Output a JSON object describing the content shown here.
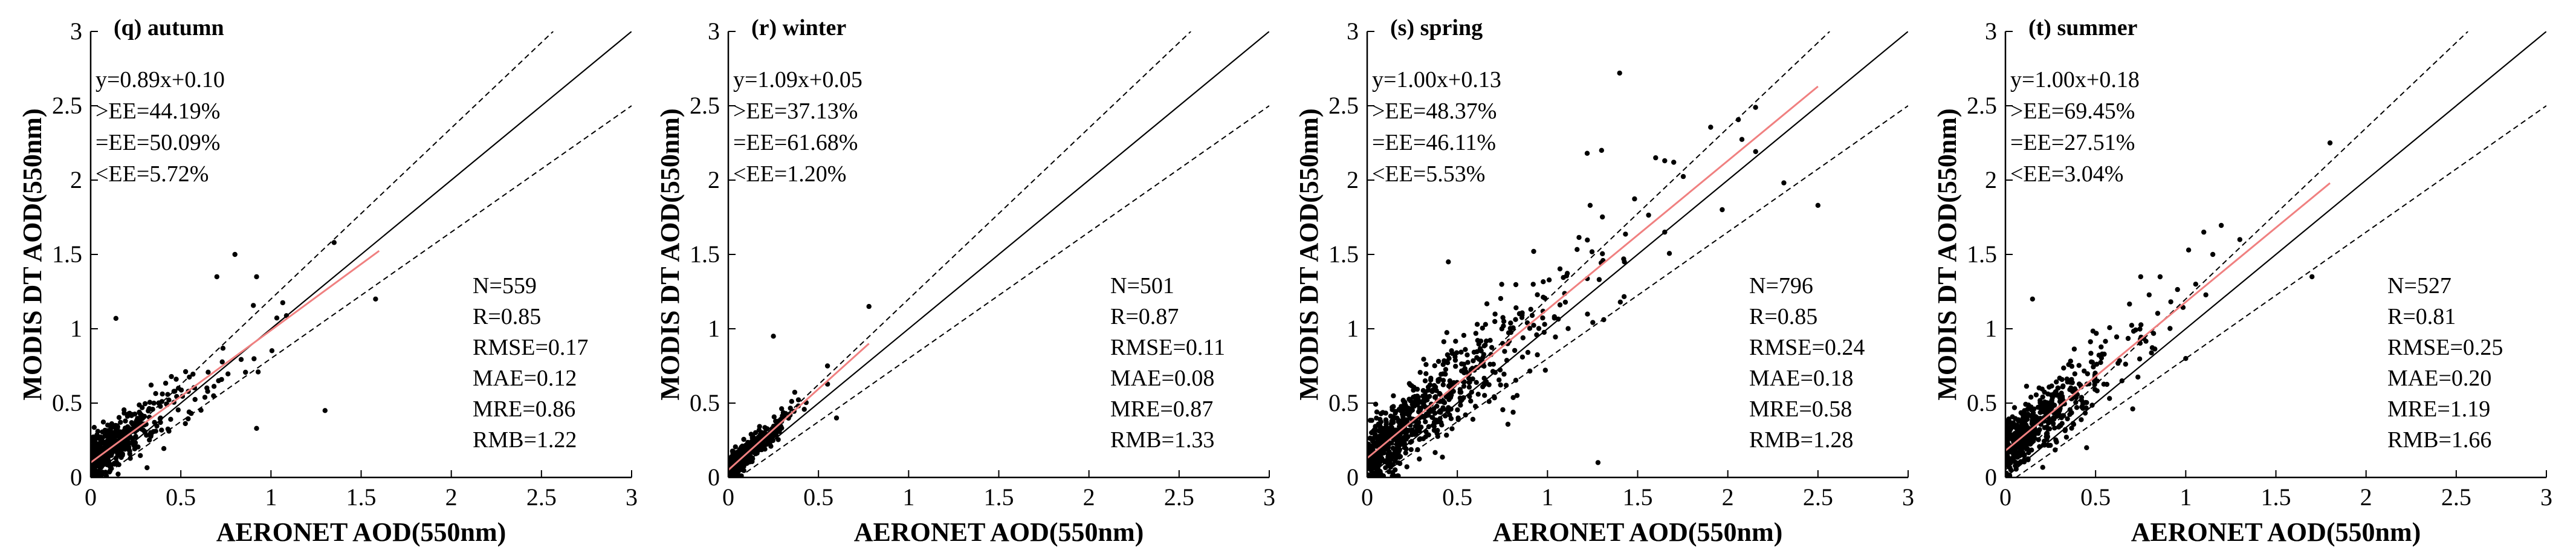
{
  "figure": {
    "xlabel": "AERONET AOD(550nm)",
    "ylabel": "MODIS DT AOD(550nm)",
    "colors": {
      "axis": "#000000",
      "fit": "#f08080",
      "point": "#000000",
      "background": "#ffffff"
    }
  },
  "chart_data": [
    {
      "type": "scatter",
      "title": "(q)  autumn",
      "xlabel": "AERONET AOD(550nm)",
      "ylabel": "MODIS DT AOD(550nm)",
      "xlim": [
        0,
        3
      ],
      "ylim": [
        0,
        3
      ],
      "xticks": [
        "0",
        "0.5",
        "1",
        "1.5",
        "2",
        "2.5",
        "3"
      ],
      "yticks": [
        "0",
        "0.5",
        "1",
        "1.5",
        "2",
        "2.5",
        "3"
      ],
      "fit": {
        "slope": 0.89,
        "intercept": 0.1,
        "x_end": 1.6
      },
      "fit_label": "y=0.89x+0.10",
      "ee_lines": [
        ">EE=44.19%",
        "=EE=50.09%",
        "<EE=5.72%"
      ],
      "stats": [
        "N=559",
        "R=0.85",
        "RMSE=0.17",
        "MAE=0.12",
        "MRE=0.86",
        "RMB=1.22"
      ],
      "n": 559,
      "r": 0.85,
      "x_scale": 0.17,
      "x_max": 1.6,
      "noise": 0.13,
      "outliers": [
        [
          0.14,
          1.07
        ],
        [
          0.8,
          1.5
        ],
        [
          1.35,
          1.58
        ],
        [
          0.92,
          0.33
        ],
        [
          1.3,
          0.45
        ],
        [
          1.58,
          1.2
        ],
        [
          0.92,
          1.35
        ],
        [
          0.7,
          1.35
        ]
      ]
    },
    {
      "type": "scatter",
      "title": "(r)  winter",
      "xlabel": "AERONET AOD(550nm)",
      "ylabel": "MODIS DT AOD(550nm)",
      "xlim": [
        0,
        3
      ],
      "ylim": [
        0,
        3
      ],
      "xticks": [
        "0",
        "0.5",
        "1",
        "1.5",
        "2",
        "2.5",
        "3"
      ],
      "yticks": [
        "0",
        "0.5",
        "1",
        "1.5",
        "2",
        "2.5",
        "3"
      ],
      "fit": {
        "slope": 1.09,
        "intercept": 0.05,
        "x_end": 0.78
      },
      "fit_label": "y=1.09x+0.05",
      "ee_lines": [
        ">EE=37.13%",
        "=EE=61.68%",
        "<EE=1.20%"
      ],
      "stats": [
        "N=501",
        "R=0.87",
        "RMSE=0.11",
        "MAE=0.08",
        "MRE=0.87",
        "RMB=1.33"
      ],
      "n": 501,
      "r": 0.87,
      "x_scale": 0.09,
      "x_max": 0.78,
      "noise": 0.08,
      "outliers": [
        [
          0.25,
          0.95
        ],
        [
          0.78,
          1.15
        ],
        [
          0.55,
          0.75
        ],
        [
          0.6,
          0.4
        ]
      ]
    },
    {
      "type": "scatter",
      "title": "(s)  spring",
      "xlabel": "AERONET AOD(550nm)",
      "ylabel": "MODIS DT AOD(550nm)",
      "xlim": [
        0,
        3
      ],
      "ylim": [
        0,
        3
      ],
      "xticks": [
        "0",
        "0.5",
        "1",
        "1.5",
        "2",
        "2.5",
        "3"
      ],
      "yticks": [
        "0",
        "0.5",
        "1",
        "1.5",
        "2",
        "2.5",
        "3"
      ],
      "fit": {
        "slope": 1.0,
        "intercept": 0.13,
        "x_end": 2.5
      },
      "fit_label": "y=1.00x+0.13",
      "ee_lines": [
        ">EE=48.37%",
        "=EE=46.11%",
        "<EE=5.53%"
      ],
      "stats": [
        "N=796",
        "R=0.85",
        "RMSE=0.24",
        "MAE=0.18",
        "MRE=0.58",
        "RMB=1.28"
      ],
      "n": 796,
      "r": 0.85,
      "x_scale": 0.35,
      "x_max": 2.5,
      "noise": 0.2,
      "outliers": [
        [
          1.4,
          2.72
        ],
        [
          1.3,
          2.2
        ],
        [
          1.22,
          2.18
        ],
        [
          1.6,
          2.15
        ],
        [
          1.65,
          2.13
        ],
        [
          1.7,
          2.12
        ],
        [
          2.5,
          1.83
        ],
        [
          1.28,
          0.1
        ],
        [
          0.45,
          1.45
        ],
        [
          1.65,
          1.65
        ]
      ]
    },
    {
      "type": "scatter",
      "title": "(t)  summer",
      "xlabel": "AERONET AOD(550nm)",
      "ylabel": "MODIS DT AOD(550nm)",
      "xlim": [
        0,
        3
      ],
      "ylim": [
        0,
        3
      ],
      "xticks": [
        "0",
        "0.5",
        "1",
        "1.5",
        "2",
        "2.5",
        "3"
      ],
      "yticks": [
        "0",
        "0.5",
        "1",
        "1.5",
        "2",
        "2.5",
        "3"
      ],
      "fit": {
        "slope": 1.0,
        "intercept": 0.18,
        "x_end": 1.8
      },
      "fit_label": "y=1.00x+0.18",
      "ee_lines": [
        ">EE=69.45%",
        "=EE=27.51%",
        "<EE=3.04%"
      ],
      "stats": [
        "N=527",
        "R=0.81",
        "RMSE=0.25",
        "MAE=0.20",
        "MRE=1.19",
        "RMB=1.66"
      ],
      "n": 527,
      "r": 0.81,
      "x_scale": 0.2,
      "x_max": 1.8,
      "noise": 0.17,
      "outliers": [
        [
          1.8,
          2.25
        ],
        [
          1.1,
          1.65
        ],
        [
          1.15,
          1.5
        ],
        [
          0.75,
          1.35
        ],
        [
          0.15,
          1.2
        ],
        [
          1.3,
          1.6
        ],
        [
          1.7,
          1.35
        ],
        [
          1.0,
          0.8
        ],
        [
          0.45,
          0.2
        ]
      ]
    }
  ]
}
